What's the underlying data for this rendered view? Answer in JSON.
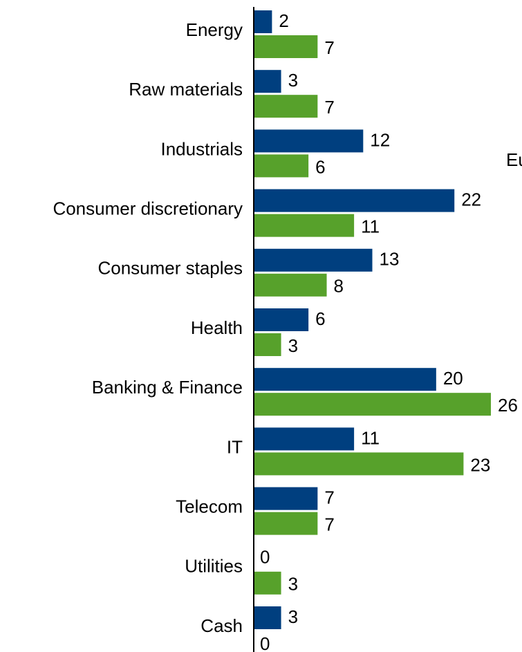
{
  "chart_data": {
    "type": "bar",
    "orientation": "horizontal",
    "categories": [
      "Energy",
      "Raw materials",
      "Industrials",
      "Consumer discretionary",
      "Consumer staples",
      "Health",
      "Banking & Finance",
      "IT",
      "Telecom",
      "Utilities",
      "Cash"
    ],
    "series": [
      {
        "color": "#003f7f",
        "values": [
          2,
          3,
          12,
          22,
          13,
          6,
          20,
          11,
          7,
          0,
          3
        ]
      },
      {
        "color": "#57a12b",
        "values": [
          7,
          7,
          6,
          11,
          8,
          3,
          26,
          23,
          7,
          3,
          0
        ]
      }
    ],
    "xlim": [
      0,
      26
    ],
    "data_labels": true,
    "grid": false,
    "legend_partial_text": "Eu"
  }
}
